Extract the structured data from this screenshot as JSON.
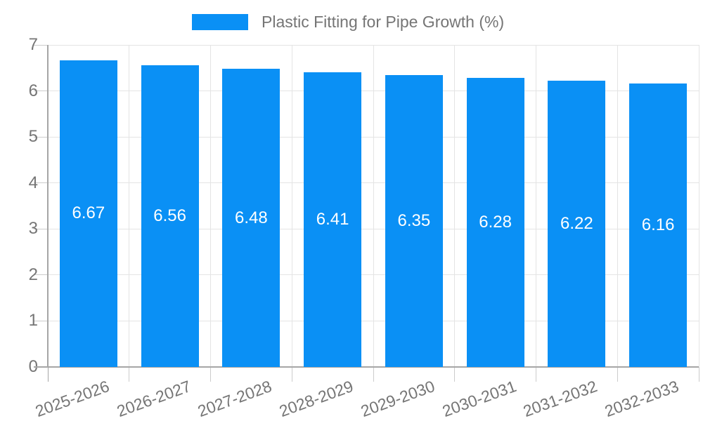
{
  "chart_data": {
    "type": "bar",
    "title": "Plastic Fitting for Pipe Growth (%)",
    "legend": {
      "label": "Plastic Fitting for Pipe Growth (%)",
      "position": "top"
    },
    "categories": [
      "2025-2026",
      "2026-2027",
      "2027-2028",
      "2028-2029",
      "2029-2030",
      "2030-2031",
      "2031-2032",
      "2032-2033"
    ],
    "series": [
      {
        "name": "Plastic Fitting for Pipe Growth (%)",
        "values": [
          6.67,
          6.56,
          6.48,
          6.41,
          6.35,
          6.28,
          6.22,
          6.16
        ]
      }
    ],
    "value_labels": [
      "6.67",
      "6.56",
      "6.48",
      "6.41",
      "6.35",
      "6.28",
      "6.22",
      "6.16"
    ],
    "value_label_position": "inside-center",
    "xlabel": "",
    "ylabel": "",
    "ylim": [
      0,
      7
    ],
    "yticks": [
      0,
      1,
      2,
      3,
      4,
      5,
      6,
      7
    ],
    "grid": true,
    "x_label_rotation_deg": -20
  },
  "colors": {
    "bar": "#0a90f5",
    "grid": "#e4e4e4",
    "axis": "#a6a6a6",
    "tick": "#cccccc",
    "text": "#757575",
    "bar_label": "#ffffff",
    "background": "#ffffff"
  }
}
